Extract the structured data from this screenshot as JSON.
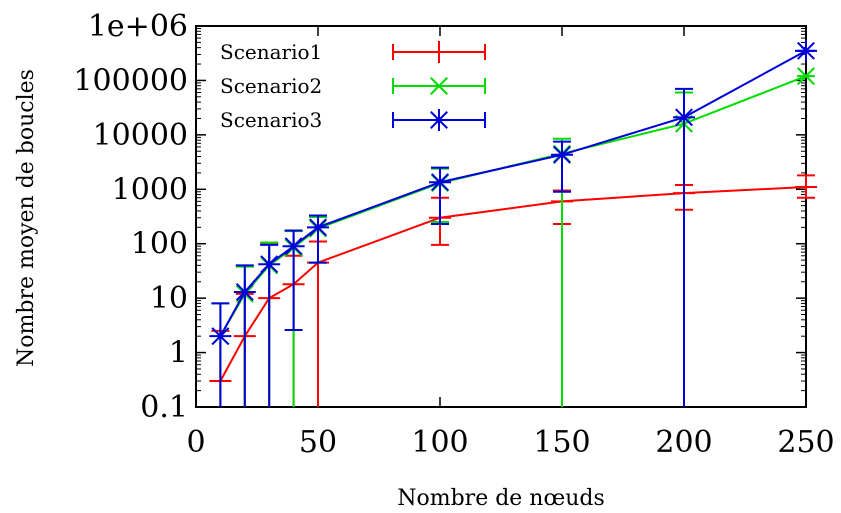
{
  "chart_data": {
    "type": "line",
    "title": "",
    "xlabel": "Nombre de nœuds",
    "ylabel": "Nombre moyen de boucles",
    "xlim": [
      0,
      250
    ],
    "ylim": [
      0.1,
      1000000
    ],
    "y_scale": "log",
    "x_ticks": [
      0,
      50,
      100,
      150,
      200,
      250
    ],
    "y_ticks": [
      0.1,
      1,
      10,
      100,
      1000,
      10000,
      100000,
      1000000
    ],
    "x_tick_labels": [
      "0",
      "50",
      "100",
      "150",
      "200",
      "250"
    ],
    "y_tick_labels": [
      "0.1",
      "1",
      "10",
      "100",
      "1000",
      "10000",
      "100000",
      "1e+06"
    ],
    "grid": false,
    "legend_position": "top-left",
    "series": [
      {
        "name": "Scenario1",
        "color": "#ff0000",
        "marker": "plus",
        "x": [
          10,
          20,
          30,
          40,
          50,
          100,
          150,
          200,
          250
        ],
        "y": [
          0.3,
          2,
          10,
          18,
          45,
          300,
          600,
          850,
          1100
        ],
        "err_low": [
          0.1,
          0.1,
          0.1,
          0.1,
          0.1,
          95,
          230,
          420,
          700
        ],
        "err_high": [
          2.5,
          12,
          100,
          60,
          110,
          700,
          950,
          1200,
          1800
        ]
      },
      {
        "name": "Scenario2",
        "color": "#00dd00",
        "marker": "cross",
        "x": [
          10,
          20,
          30,
          40,
          50,
          100,
          150,
          200,
          250
        ],
        "y": [
          2,
          12,
          40,
          85,
          190,
          1300,
          4500,
          16000,
          120000
        ],
        "err_low": [
          0.1,
          0.1,
          0.1,
          0.1,
          45,
          250,
          0.1,
          0.1,
          120000
        ],
        "err_high": [
          8,
          38,
          105,
          170,
          310,
          2400,
          8500,
          60000,
          120000
        ]
      },
      {
        "name": "Scenario3",
        "color": "#0000dd",
        "marker": "star",
        "x": [
          10,
          20,
          30,
          40,
          50,
          100,
          150,
          200,
          250
        ],
        "y": [
          2,
          13,
          42,
          90,
          200,
          1350,
          4300,
          21000,
          350000
        ],
        "err_low": [
          0.1,
          0.1,
          0.1,
          2.6,
          45,
          230,
          900,
          0.1,
          350000
        ],
        "err_high": [
          8,
          40,
          95,
          175,
          330,
          2500,
          7500,
          70000,
          350000
        ]
      }
    ]
  }
}
